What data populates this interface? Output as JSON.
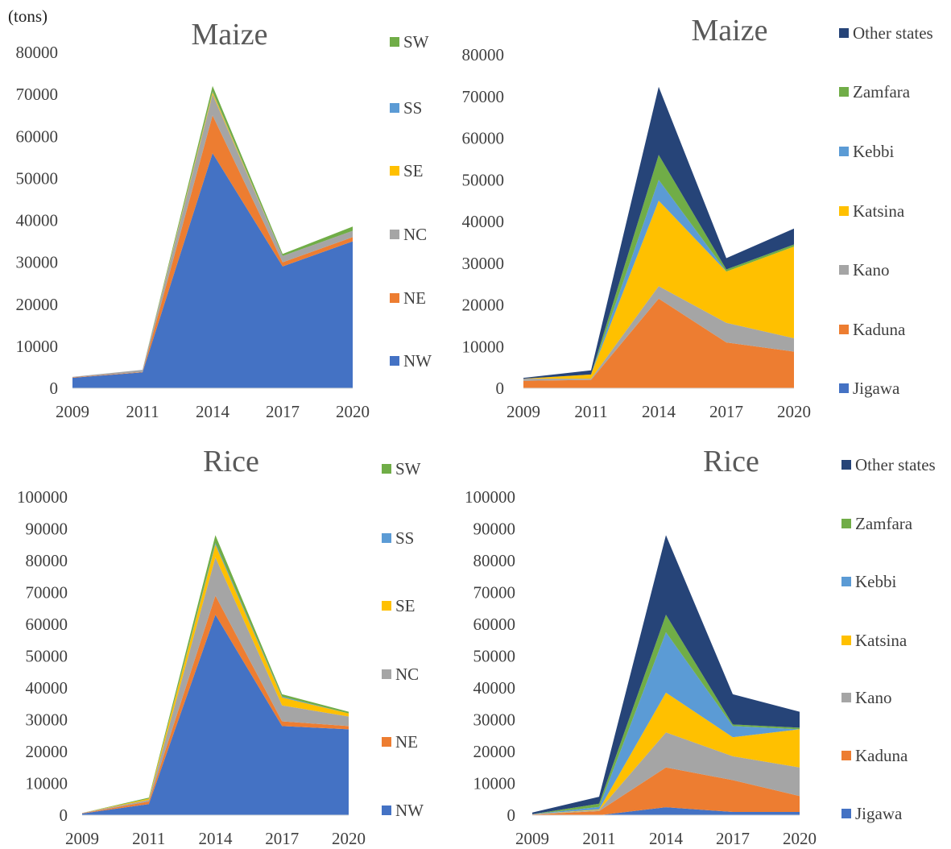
{
  "unit_label": "(tons)",
  "colors": {
    "NW": "#4472C4",
    "NE": "#ED7D31",
    "NC": "#A5A5A5",
    "SE": "#FFC000",
    "SS": "#5B9BD5",
    "SW": "#70AD47",
    "Jigawa": "#4472C4",
    "Kaduna": "#ED7D31",
    "Kano": "#A5A5A5",
    "Katsina": "#FFC000",
    "Kebbi": "#5B9BD5",
    "Zamfara": "#70AD47",
    "Other states": "#264478"
  },
  "chart_data": [
    {
      "type": "area",
      "stacked": true,
      "title": "Maize",
      "categories": [
        "2009",
        "2011",
        "2014",
        "2017",
        "2020"
      ],
      "ylim": [
        0,
        80000
      ],
      "yticks": [
        0,
        10000,
        20000,
        30000,
        40000,
        50000,
        60000,
        70000,
        80000
      ],
      "legend_position": "right",
      "series": [
        {
          "name": "NW",
          "values": [
            2500,
            3800,
            56000,
            29000,
            35000
          ]
        },
        {
          "name": "NE",
          "values": [
            100,
            100,
            9000,
            1000,
            1000
          ]
        },
        {
          "name": "NC",
          "values": [
            100,
            500,
            5000,
            1500,
            1500
          ]
        },
        {
          "name": "SE",
          "values": [
            0,
            0,
            500,
            0,
            0
          ]
        },
        {
          "name": "SS",
          "values": [
            0,
            0,
            200,
            0,
            0
          ]
        },
        {
          "name": "SW",
          "values": [
            0,
            0,
            1300,
            500,
            1000
          ]
        }
      ]
    },
    {
      "type": "area",
      "stacked": true,
      "title": "Maize",
      "categories": [
        "2009",
        "2011",
        "2014",
        "2017",
        "2020"
      ],
      "ylim": [
        0,
        80000
      ],
      "yticks": [
        0,
        10000,
        20000,
        30000,
        40000,
        50000,
        60000,
        70000,
        80000
      ],
      "legend_position": "right",
      "series": [
        {
          "name": "Jigawa",
          "values": [
            0,
            0,
            0,
            0,
            0
          ]
        },
        {
          "name": "Kaduna",
          "values": [
            1800,
            2000,
            21500,
            11000,
            8800
          ]
        },
        {
          "name": "Kano",
          "values": [
            500,
            300,
            3000,
            4700,
            3200
          ]
        },
        {
          "name": "Katsina",
          "values": [
            0,
            1000,
            20500,
            12300,
            22000
          ]
        },
        {
          "name": "Kebbi",
          "values": [
            0,
            0,
            5000,
            0,
            0
          ]
        },
        {
          "name": "Zamfara",
          "values": [
            0,
            0,
            6000,
            500,
            500
          ]
        },
        {
          "name": "Other states",
          "values": [
            200,
            1000,
            16300,
            2700,
            3800
          ]
        }
      ]
    },
    {
      "type": "area",
      "stacked": true,
      "title": "Rice",
      "categories": [
        "2009",
        "2011",
        "2014",
        "2017",
        "2020"
      ],
      "ylim": [
        0,
        100000
      ],
      "yticks": [
        0,
        10000,
        20000,
        30000,
        40000,
        50000,
        60000,
        70000,
        80000,
        90000,
        100000
      ],
      "legend_position": "right",
      "series": [
        {
          "name": "NW",
          "values": [
            500,
            3500,
            63000,
            28000,
            27000
          ]
        },
        {
          "name": "NE",
          "values": [
            100,
            800,
            6000,
            1500,
            1000
          ]
        },
        {
          "name": "NC",
          "values": [
            100,
            500,
            12000,
            5000,
            3000
          ]
        },
        {
          "name": "SE",
          "values": [
            0,
            400,
            4000,
            2500,
            1000
          ]
        },
        {
          "name": "SS",
          "values": [
            0,
            0,
            500,
            300,
            0
          ]
        },
        {
          "name": "SW",
          "values": [
            0,
            300,
            2500,
            700,
            500
          ]
        }
      ]
    },
    {
      "type": "area",
      "stacked": true,
      "title": "Rice",
      "categories": [
        "2009",
        "2011",
        "2014",
        "2017",
        "2020"
      ],
      "ylim": [
        0,
        100000
      ],
      "yticks": [
        0,
        10000,
        20000,
        30000,
        40000,
        50000,
        60000,
        70000,
        80000,
        90000,
        100000
      ],
      "legend_position": "right",
      "series": [
        {
          "name": "Jigawa",
          "values": [
            0,
            0,
            2500,
            1000,
            1000
          ]
        },
        {
          "name": "Kaduna",
          "values": [
            200,
            1300,
            12500,
            10000,
            5000
          ]
        },
        {
          "name": "Kano",
          "values": [
            100,
            300,
            11000,
            7500,
            9000
          ]
        },
        {
          "name": "Katsina",
          "values": [
            0,
            200,
            12500,
            6000,
            12000
          ]
        },
        {
          "name": "Kebbi",
          "values": [
            0,
            800,
            19000,
            3500,
            0
          ]
        },
        {
          "name": "Zamfara",
          "values": [
            0,
            1000,
            5500,
            500,
            500
          ]
        },
        {
          "name": "Other states",
          "values": [
            500,
            2200,
            25000,
            9500,
            5000
          ]
        }
      ]
    }
  ]
}
